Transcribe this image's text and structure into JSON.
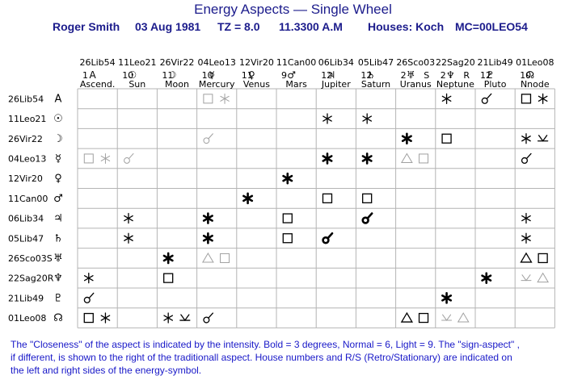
{
  "title": "Energy Aspects — Single Wheel",
  "info": {
    "name": "Roger Smith",
    "date": "03 Aug 1981",
    "tz": "TZ = 8.0",
    "time": "11.3300 A.M",
    "houses": "Houses: Koch",
    "mc": "MC=00LEO54"
  },
  "colors": {
    "title": "#1c1c8c",
    "text": "#000000",
    "grid": "#b4b4b4",
    "faint": "#a0a0a0",
    "footer": "#1818c8"
  },
  "columns": [
    {
      "pos": "26Lib54",
      "house": "1",
      "glyph": "A",
      "name": "Ascend.",
      "retro": ""
    },
    {
      "pos": "11Leo21",
      "house": "10",
      "glyph": "☉",
      "name": "Sun",
      "retro": ""
    },
    {
      "pos": "26Vir22",
      "house": "11",
      "glyph": "☽",
      "name": "Moon",
      "retro": ""
    },
    {
      "pos": "04Leo13",
      "house": "10",
      "glyph": "☿",
      "name": "Mercury",
      "retro": ""
    },
    {
      "pos": "12Vir20",
      "house": "11",
      "glyph": "♀",
      "name": "Venus",
      "retro": ""
    },
    {
      "pos": "11Can00",
      "house": "9",
      "glyph": "♂",
      "name": "Mars",
      "retro": ""
    },
    {
      "pos": "06Lib34",
      "house": "12",
      "glyph": "♃",
      "name": "Jupiter",
      "retro": ""
    },
    {
      "pos": "05Lib47",
      "house": "12",
      "glyph": "♄",
      "name": "Saturn",
      "retro": ""
    },
    {
      "pos": "26Sco03",
      "house": "2",
      "glyph": "♅",
      "name": "Uranus",
      "retro": "S"
    },
    {
      "pos": "22Sag20",
      "house": "2",
      "glyph": "♆",
      "name": "Neptune",
      "retro": "R"
    },
    {
      "pos": "21Lib49",
      "house": "12",
      "glyph": "♇",
      "name": "Pluto",
      "retro": ""
    },
    {
      "pos": "01Leo08",
      "house": "10",
      "glyph": "☊",
      "name": "Nnode",
      "retro": ""
    }
  ],
  "rows": [
    {
      "label": "26Lib54",
      "glyph": "A"
    },
    {
      "label": "11Leo21",
      "glyph": "☉"
    },
    {
      "label": "26Vir22",
      "glyph": "☽"
    },
    {
      "label": "04Leo13",
      "glyph": "☿"
    },
    {
      "label": "12Vir20",
      "glyph": "♀"
    },
    {
      "label": "11Can00",
      "glyph": "♂"
    },
    {
      "label": "06Lib34",
      "glyph": "♃"
    },
    {
      "label": "05Lib47",
      "glyph": "♄"
    },
    {
      "label": "26Sco03S",
      "glyph": "♅"
    },
    {
      "label": "22Sag20R",
      "glyph": "♆"
    },
    {
      "label": "21Lib49",
      "glyph": "♇"
    },
    {
      "label": "01Leo08",
      "glyph": "☊"
    }
  ],
  "aspect_legend": {
    "conjunction": "☌",
    "sextile": "✱",
    "square": "□",
    "trine": "△",
    "semisextile": "⊻",
    "opposition": "☍"
  },
  "cells": [
    {
      "r": 0,
      "c": 3,
      "a": "square",
      "s": "faint"
    },
    {
      "r": 0,
      "c": 3,
      "a": "sextile",
      "s": "faint",
      "right": true
    },
    {
      "r": 0,
      "c": 9,
      "a": "sextile",
      "s": "normal"
    },
    {
      "r": 0,
      "c": 10,
      "a": "conjunction",
      "s": "normal"
    },
    {
      "r": 0,
      "c": 11,
      "a": "square",
      "s": "normal"
    },
    {
      "r": 0,
      "c": 11,
      "a": "sextile",
      "s": "normal",
      "right": true
    },
    {
      "r": 1,
      "c": 6,
      "a": "sextile",
      "s": "normal"
    },
    {
      "r": 1,
      "c": 7,
      "a": "sextile",
      "s": "normal"
    },
    {
      "r": 2,
      "c": 3,
      "a": "conjunction",
      "s": "faint"
    },
    {
      "r": 2,
      "c": 8,
      "a": "sextile",
      "s": "bold"
    },
    {
      "r": 2,
      "c": 9,
      "a": "square",
      "s": "normal"
    },
    {
      "r": 2,
      "c": 11,
      "a": "sextile",
      "s": "normal"
    },
    {
      "r": 2,
      "c": 11,
      "a": "semisextile",
      "s": "normal",
      "right": true
    },
    {
      "r": 3,
      "c": 0,
      "a": "square",
      "s": "faint"
    },
    {
      "r": 3,
      "c": 0,
      "a": "sextile",
      "s": "faint",
      "right": true
    },
    {
      "r": 3,
      "c": 1,
      "a": "conjunction",
      "s": "faint"
    },
    {
      "r": 3,
      "c": 6,
      "a": "sextile",
      "s": "bold"
    },
    {
      "r": 3,
      "c": 7,
      "a": "sextile",
      "s": "bold"
    },
    {
      "r": 3,
      "c": 8,
      "a": "trine",
      "s": "faint"
    },
    {
      "r": 3,
      "c": 8,
      "a": "square",
      "s": "faint",
      "right": true
    },
    {
      "r": 3,
      "c": 11,
      "a": "conjunction",
      "s": "normal"
    },
    {
      "r": 4,
      "c": 5,
      "a": "sextile",
      "s": "bold"
    },
    {
      "r": 5,
      "c": 4,
      "a": "sextile",
      "s": "bold"
    },
    {
      "r": 5,
      "c": 6,
      "a": "square",
      "s": "normal"
    },
    {
      "r": 5,
      "c": 7,
      "a": "square",
      "s": "normal"
    },
    {
      "r": 6,
      "c": 1,
      "a": "sextile",
      "s": "normal"
    },
    {
      "r": 6,
      "c": 3,
      "a": "sextile",
      "s": "bold"
    },
    {
      "r": 6,
      "c": 5,
      "a": "square",
      "s": "normal"
    },
    {
      "r": 6,
      "c": 7,
      "a": "conjunction",
      "s": "bold"
    },
    {
      "r": 6,
      "c": 11,
      "a": "sextile",
      "s": "normal"
    },
    {
      "r": 7,
      "c": 1,
      "a": "sextile",
      "s": "normal"
    },
    {
      "r": 7,
      "c": 3,
      "a": "sextile",
      "s": "bold"
    },
    {
      "r": 7,
      "c": 5,
      "a": "square",
      "s": "normal"
    },
    {
      "r": 7,
      "c": 6,
      "a": "conjunction",
      "s": "bold"
    },
    {
      "r": 7,
      "c": 11,
      "a": "sextile",
      "s": "normal"
    },
    {
      "r": 8,
      "c": 2,
      "a": "sextile",
      "s": "bold"
    },
    {
      "r": 8,
      "c": 3,
      "a": "trine",
      "s": "faint"
    },
    {
      "r": 8,
      "c": 3,
      "a": "square",
      "s": "faint",
      "right": true
    },
    {
      "r": 8,
      "c": 11,
      "a": "trine",
      "s": "normal"
    },
    {
      "r": 8,
      "c": 11,
      "a": "square",
      "s": "normal",
      "right": true
    },
    {
      "r": 9,
      "c": 0,
      "a": "sextile",
      "s": "normal"
    },
    {
      "r": 9,
      "c": 2,
      "a": "square",
      "s": "normal"
    },
    {
      "r": 9,
      "c": 10,
      "a": "sextile",
      "s": "bold"
    },
    {
      "r": 9,
      "c": 11,
      "a": "semisextile",
      "s": "faint"
    },
    {
      "r": 9,
      "c": 11,
      "a": "trine",
      "s": "faint",
      "right": true
    },
    {
      "r": 10,
      "c": 0,
      "a": "conjunction",
      "s": "normal"
    },
    {
      "r": 10,
      "c": 9,
      "a": "sextile",
      "s": "bold"
    },
    {
      "r": 11,
      "c": 0,
      "a": "square",
      "s": "normal"
    },
    {
      "r": 11,
      "c": 0,
      "a": "sextile",
      "s": "normal",
      "right": true
    },
    {
      "r": 11,
      "c": 2,
      "a": "sextile",
      "s": "normal"
    },
    {
      "r": 11,
      "c": 2,
      "a": "semisextile",
      "s": "normal",
      "right": true
    },
    {
      "r": 11,
      "c": 3,
      "a": "conjunction",
      "s": "normal"
    },
    {
      "r": 11,
      "c": 8,
      "a": "trine",
      "s": "normal"
    },
    {
      "r": 11,
      "c": 8,
      "a": "square",
      "s": "normal",
      "right": true
    },
    {
      "r": 11,
      "c": 9,
      "a": "semisextile",
      "s": "faint"
    },
    {
      "r": 11,
      "c": 9,
      "a": "trine",
      "s": "faint",
      "right": true
    }
  ],
  "footer": [
    "The \"Closeness\" of the aspect is indicated by the intensity. Bold = 3 degrees, Normal = 6, Light = 9. The \"sign-aspect\" ,",
    "if different, is shown to the right of the traditionall aspect.  House numbers and R/S (Retro/Stationary) are indicated on",
    "the left and right sides of the energy-symbol."
  ]
}
